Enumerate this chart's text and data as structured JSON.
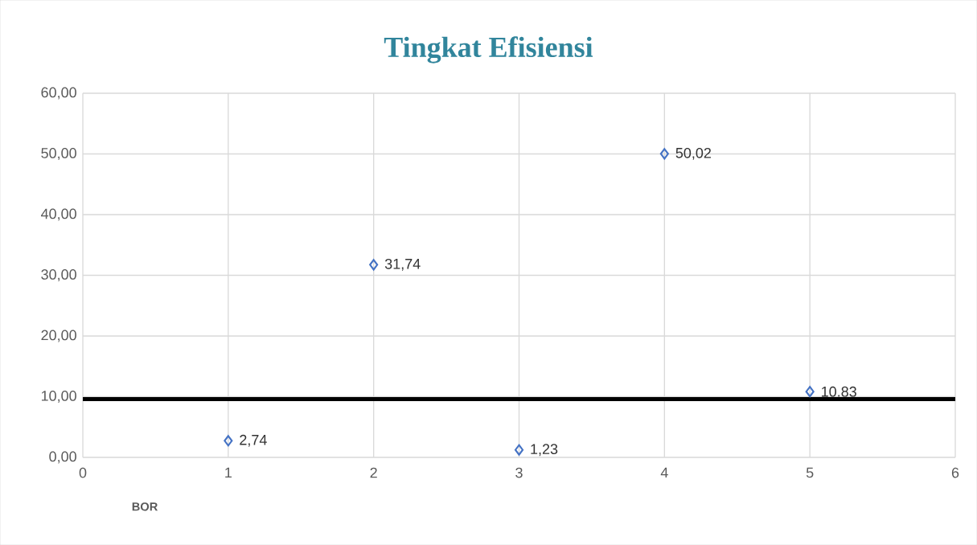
{
  "chart_data": {
    "type": "scatter",
    "title": "Tingkat Efisiensi",
    "xlabel": "BOR",
    "x": [
      1,
      2,
      3,
      4,
      5
    ],
    "series": [
      {
        "color": "#4472c4",
        "values": [
          2.74,
          31.74,
          1.23,
          50.02,
          10.83
        ],
        "value_labels": [
          "2,74",
          "31,74",
          "1,23",
          "50,02",
          "10.83"
        ]
      }
    ],
    "xlim": [
      0,
      6
    ],
    "xticks": [
      0,
      1,
      2,
      3,
      4,
      5,
      6
    ],
    "ylim": [
      0,
      60
    ],
    "yticks": [
      {
        "value": 0,
        "label": "0,00"
      },
      {
        "value": 10,
        "label": "10,00"
      },
      {
        "value": 20,
        "label": "20,00"
      },
      {
        "value": 30,
        "label": "30,00"
      },
      {
        "value": 40,
        "label": "40,00"
      },
      {
        "value": 50,
        "label": "50,00"
      },
      {
        "value": 60,
        "label": "60,00"
      }
    ],
    "ref_lines": [
      {
        "axis": "y",
        "value": 9.6,
        "color": "#000000"
      }
    ],
    "grid": true,
    "marker": "diamond"
  }
}
